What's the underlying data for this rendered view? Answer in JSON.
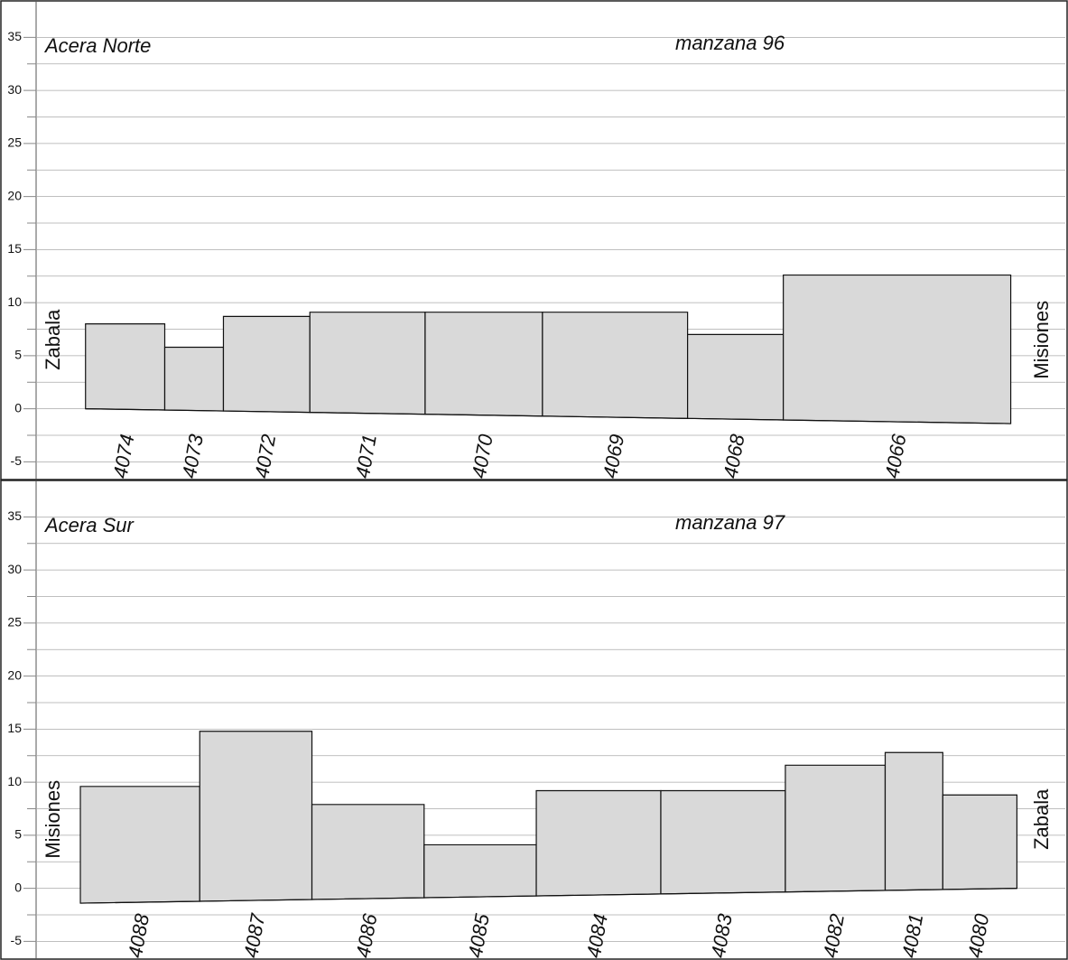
{
  "chart_data": [
    {
      "type": "bar",
      "title": "Acera Norte",
      "subtitle": "manzana 96",
      "left_label": "Zabala",
      "right_label": "Misiones",
      "categories": [
        "4074",
        "4073",
        "4072",
        "4071",
        "4070",
        "4069",
        "4068",
        "4066"
      ],
      "values": [
        8,
        5.8,
        8.7,
        9.1,
        9.1,
        9.1,
        7,
        12.6
      ],
      "edges": [
        4.8,
        12.5,
        18.2,
        26.6,
        37.8,
        49.2,
        63.3,
        72.6,
        94.7
      ],
      "ground": [
        0,
        -1.4
      ],
      "xlim": [
        0,
        100
      ],
      "ylim": [
        -6.5,
        37.5
      ],
      "yticks": [
        -5,
        0,
        5,
        10,
        15,
        20,
        25,
        30,
        35
      ],
      "minor_yticks": [
        -2.5,
        2.5,
        7.5,
        12.5,
        17.5,
        22.5,
        27.5,
        32.5
      ],
      "color": "#d9d9d9",
      "grid": true
    },
    {
      "type": "bar",
      "title": "Acera Sur",
      "subtitle": "manzana 97",
      "left_label": "Misiones",
      "right_label": "Zabala",
      "categories": [
        "4088",
        "4087",
        "4086",
        "4085",
        "4084",
        "4083",
        "4082",
        "4081",
        "4080"
      ],
      "values": [
        9.6,
        14.8,
        7.9,
        4.1,
        9.2,
        9.2,
        11.6,
        12.8,
        8.8
      ],
      "edges": [
        4.3,
        15.9,
        26.8,
        37.7,
        48.6,
        60.7,
        72.8,
        82.5,
        88.1,
        95.3
      ],
      "ground": [
        -1.4,
        0
      ],
      "xlim": [
        0,
        100
      ],
      "ylim": [
        -6.5,
        37.5
      ],
      "yticks": [
        -5,
        0,
        5,
        10,
        15,
        20,
        25,
        30,
        35
      ],
      "minor_yticks": [
        -2.5,
        2.5,
        7.5,
        12.5,
        17.5,
        22.5,
        27.5,
        32.5
      ],
      "color": "#d9d9d9",
      "grid": true
    }
  ]
}
